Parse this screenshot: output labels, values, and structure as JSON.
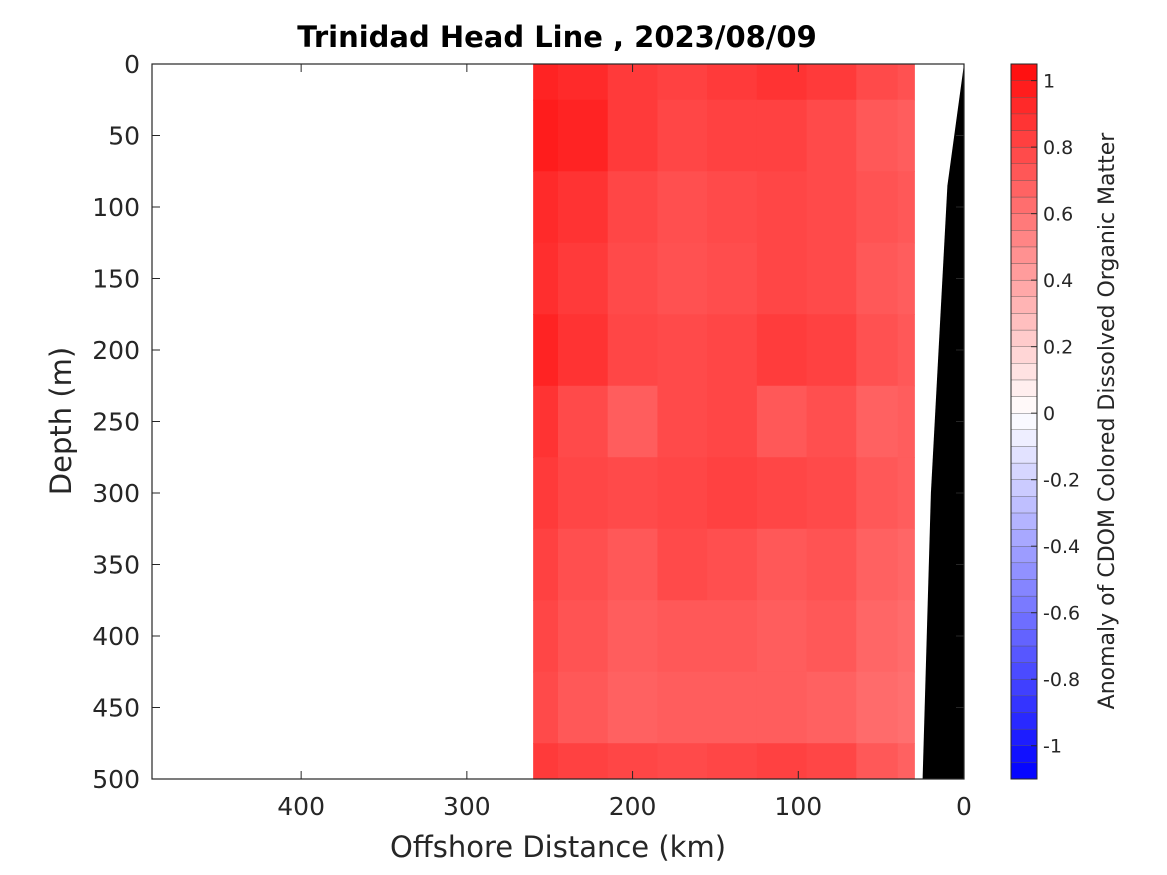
{
  "chart_data": {
    "type": "heatmap",
    "title": "Trinidad Head Line , 2023/08/09",
    "xlabel": "Offshore Distance (km)",
    "ylabel": "Depth (m)",
    "colorbar_label": "Anomaly of CDOM Colored Dissolved Organic Matter",
    "x_reversed": true,
    "xlim": [
      0,
      490
    ],
    "ylim": [
      0,
      500
    ],
    "y_reversed": true,
    "x_ticks": [
      400,
      300,
      200,
      100,
      0
    ],
    "x_tick_labels": [
      "400",
      "300",
      "200",
      "100",
      "0"
    ],
    "y_ticks": [
      0,
      50,
      100,
      150,
      200,
      250,
      300,
      350,
      400,
      450,
      500
    ],
    "y_tick_labels": [
      "0",
      "50",
      "100",
      "150",
      "200",
      "250",
      "300",
      "350",
      "400",
      "450",
      "500"
    ],
    "clim": [
      -1.1,
      1.05
    ],
    "colorbar_ticks": [
      1,
      0.8,
      0.6,
      0.4,
      0.2,
      0,
      -0.2,
      -0.4,
      -0.6,
      -0.8,
      -1
    ],
    "colorbar_tick_labels": [
      "1",
      "0.8",
      "0.6",
      "0.4",
      "0.2",
      "0",
      "-0.2",
      "-0.4",
      "-0.6",
      "-0.8",
      "-1"
    ],
    "data_extent_km": [
      30,
      260
    ],
    "depth_layers_m": [
      0,
      50,
      100,
      150,
      200,
      250,
      300,
      350,
      400,
      450,
      500
    ],
    "grid_x_km": [
      260,
      230,
      200,
      170,
      140,
      110,
      80,
      50,
      30
    ],
    "grid_depth_m": [
      0,
      50,
      100,
      150,
      200,
      250,
      300,
      350,
      400,
      450,
      500
    ],
    "values": [
      [
        0.95,
        0.92,
        0.85,
        0.82,
        0.85,
        0.88,
        0.85,
        0.78,
        0.75
      ],
      [
        0.98,
        0.95,
        0.85,
        0.8,
        0.82,
        0.82,
        0.78,
        0.72,
        0.7
      ],
      [
        0.92,
        0.88,
        0.8,
        0.76,
        0.78,
        0.8,
        0.78,
        0.74,
        0.72
      ],
      [
        0.9,
        0.85,
        0.78,
        0.75,
        0.77,
        0.8,
        0.78,
        0.72,
        0.7
      ],
      [
        0.95,
        0.88,
        0.8,
        0.78,
        0.8,
        0.84,
        0.82,
        0.75,
        0.72
      ],
      [
        0.88,
        0.78,
        0.7,
        0.78,
        0.8,
        0.72,
        0.76,
        0.68,
        0.7
      ],
      [
        0.85,
        0.8,
        0.78,
        0.8,
        0.82,
        0.8,
        0.78,
        0.72,
        0.7
      ],
      [
        0.82,
        0.76,
        0.72,
        0.78,
        0.76,
        0.72,
        0.74,
        0.68,
        0.66
      ],
      [
        0.8,
        0.74,
        0.7,
        0.72,
        0.72,
        0.7,
        0.72,
        0.66,
        0.64
      ],
      [
        0.78,
        0.72,
        0.68,
        0.7,
        0.7,
        0.7,
        0.68,
        0.64,
        0.62
      ],
      [
        0.85,
        0.82,
        0.8,
        0.78,
        0.8,
        0.82,
        0.8,
        0.72,
        0.68
      ]
    ],
    "bathymetry_km_m": [
      [
        0,
        0
      ],
      [
        10,
        85
      ],
      [
        20,
        300
      ],
      [
        25,
        500
      ]
    ],
    "colors": {
      "positive": "#ff0000",
      "negative": "#0000ff",
      "zero": "#ffffff",
      "bathymetry": "#000000"
    },
    "grid": false
  }
}
